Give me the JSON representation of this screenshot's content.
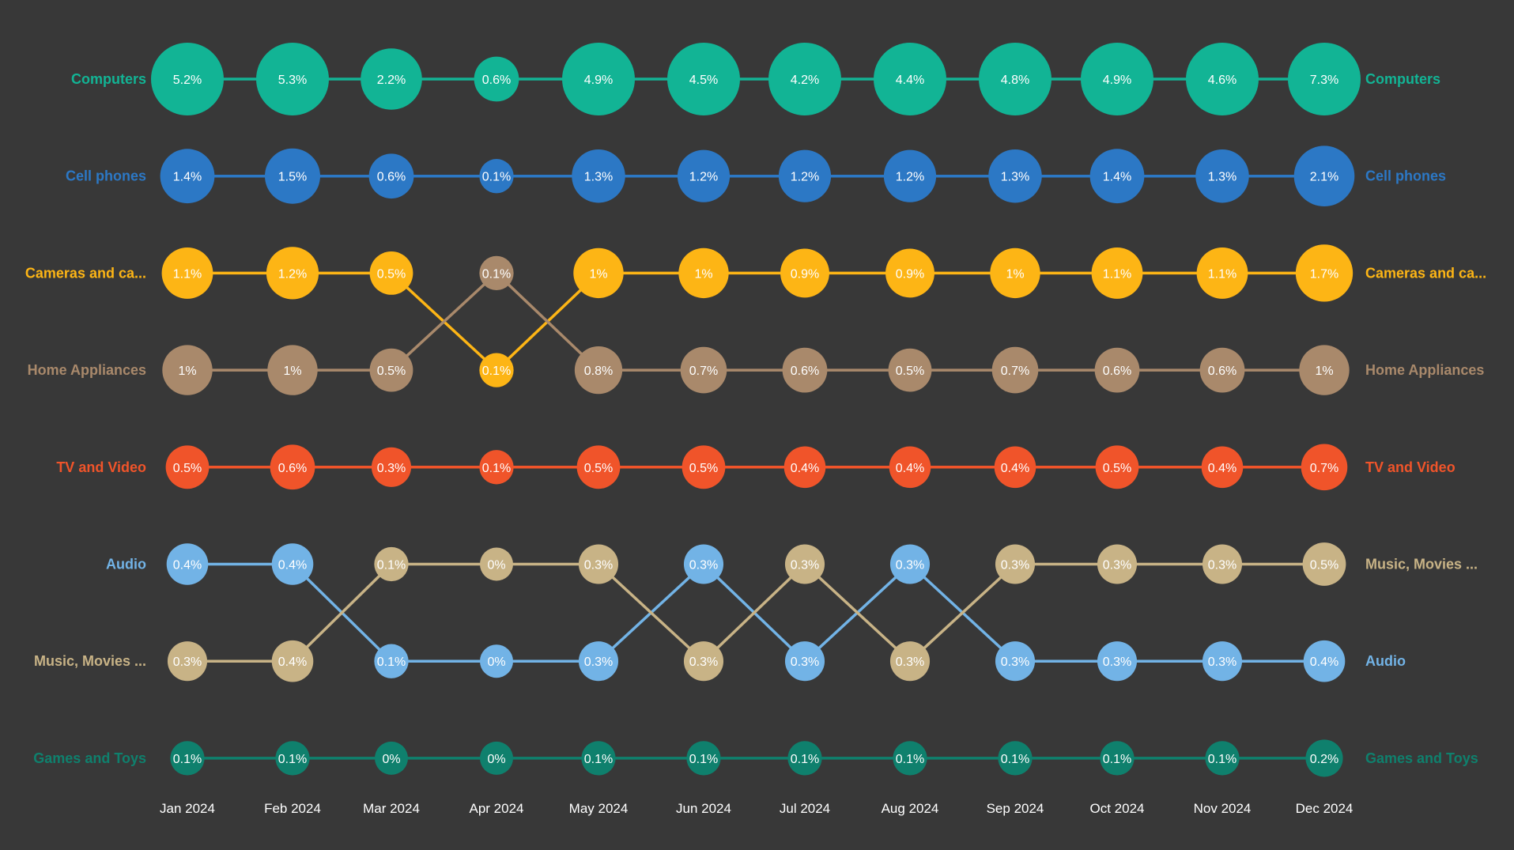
{
  "chart_data": {
    "type": "ribbon-rank",
    "categories": [
      "Jan 2024",
      "Feb 2024",
      "Mar 2024",
      "Apr 2024",
      "May 2024",
      "Jun 2024",
      "Jul 2024",
      "Aug 2024",
      "Sep 2024",
      "Oct 2024",
      "Nov 2024",
      "Dec 2024"
    ],
    "series": [
      {
        "name": "Computers",
        "short_label": "Computers",
        "color": "#12B495",
        "values": [
          5.2,
          5.3,
          2.2,
          0.6,
          4.9,
          4.5,
          4.2,
          4.4,
          4.8,
          4.9,
          4.6,
          7.3
        ],
        "labels": [
          "5.2%",
          "5.3%",
          "2.2%",
          "0.6%",
          "4.9%",
          "4.5%",
          "4.2%",
          "4.4%",
          "4.8%",
          "4.9%",
          "4.6%",
          "7.3%"
        ],
        "ranks": [
          1,
          1,
          1,
          1,
          1,
          1,
          1,
          1,
          1,
          1,
          1,
          1
        ]
      },
      {
        "name": "Cell phones",
        "short_label": "Cell phones",
        "color": "#2C78C5",
        "values": [
          1.4,
          1.5,
          0.6,
          0.1,
          1.3,
          1.2,
          1.2,
          1.2,
          1.3,
          1.4,
          1.3,
          2.1
        ],
        "labels": [
          "1.4%",
          "1.5%",
          "0.6%",
          "0.1%",
          "1.3%",
          "1.2%",
          "1.2%",
          "1.2%",
          "1.3%",
          "1.4%",
          "1.3%",
          "2.1%"
        ],
        "ranks": [
          2,
          2,
          2,
          2,
          2,
          2,
          2,
          2,
          2,
          2,
          2,
          2
        ]
      },
      {
        "name": "Cameras and camcorders",
        "short_label": "Cameras and ca...",
        "color": "#FDB515",
        "values": [
          1.1,
          1.2,
          0.5,
          0.1,
          1,
          1,
          0.9,
          0.9,
          1,
          1.1,
          1.1,
          1.7
        ],
        "labels": [
          "1.1%",
          "1.2%",
          "0.5%",
          "0.1%",
          "1%",
          "1%",
          "0.9%",
          "0.9%",
          "1%",
          "1.1%",
          "1.1%",
          "1.7%"
        ],
        "ranks": [
          3,
          3,
          3,
          4,
          3,
          3,
          3,
          3,
          3,
          3,
          3,
          3
        ]
      },
      {
        "name": "Home Appliances",
        "short_label": "Home Appliances",
        "color": "#A9896B",
        "values": [
          1,
          1,
          0.5,
          0.1,
          0.8,
          0.7,
          0.6,
          0.5,
          0.7,
          0.6,
          0.6,
          1
        ],
        "labels": [
          "1%",
          "1%",
          "0.5%",
          "0.1%",
          "0.8%",
          "0.7%",
          "0.6%",
          "0.5%",
          "0.7%",
          "0.6%",
          "0.6%",
          "1%"
        ],
        "ranks": [
          4,
          4,
          4,
          3,
          4,
          4,
          4,
          4,
          4,
          4,
          4,
          4
        ]
      },
      {
        "name": "TV and Video",
        "short_label": "TV and Video",
        "color": "#F0542A",
        "values": [
          0.5,
          0.6,
          0.3,
          0.1,
          0.5,
          0.5,
          0.4,
          0.4,
          0.4,
          0.5,
          0.4,
          0.7
        ],
        "labels": [
          "0.5%",
          "0.6%",
          "0.3%",
          "0.1%",
          "0.5%",
          "0.5%",
          "0.4%",
          "0.4%",
          "0.4%",
          "0.5%",
          "0.4%",
          "0.7%"
        ],
        "ranks": [
          5,
          5,
          5,
          5,
          5,
          5,
          5,
          5,
          5,
          5,
          5,
          5
        ]
      },
      {
        "name": "Audio",
        "short_label": "Audio",
        "color": "#72B3E6",
        "values": [
          0.4,
          0.4,
          0.1,
          0,
          0.3,
          0.3,
          0.3,
          0.3,
          0.3,
          0.3,
          0.3,
          0.4
        ],
        "labels": [
          "0.4%",
          "0.4%",
          "0.1%",
          "0%",
          "0.3%",
          "0.3%",
          "0.3%",
          "0.3%",
          "0.3%",
          "0.3%",
          "0.3%",
          "0.4%"
        ],
        "ranks": [
          6,
          6,
          7,
          7,
          7,
          6,
          7,
          6,
          7,
          7,
          7,
          7
        ]
      },
      {
        "name": "Music, Movies and Audio Books",
        "short_label": "Music, Movies ...",
        "color": "#C8B386",
        "values": [
          0.3,
          0.4,
          0.1,
          0,
          0.3,
          0.3,
          0.3,
          0.3,
          0.3,
          0.3,
          0.3,
          0.5
        ],
        "labels": [
          "0.3%",
          "0.4%",
          "0.1%",
          "0%",
          "0.3%",
          "0.3%",
          "0.3%",
          "0.3%",
          "0.3%",
          "0.3%",
          "0.3%",
          "0.5%"
        ],
        "ranks": [
          7,
          7,
          6,
          6,
          6,
          7,
          6,
          7,
          6,
          6,
          6,
          6
        ]
      },
      {
        "name": "Games and Toys",
        "short_label": "Games and Toys",
        "color": "#0F806D",
        "values": [
          0.1,
          0.1,
          0,
          0,
          0.1,
          0.1,
          0.1,
          0.1,
          0.1,
          0.1,
          0.1,
          0.2
        ],
        "labels": [
          "0.1%",
          "0.1%",
          "0%",
          "0%",
          "0.1%",
          "0.1%",
          "0.1%",
          "0.1%",
          "0.1%",
          "0.1%",
          "0.1%",
          "0.2%"
        ],
        "ranks": [
          8,
          8,
          8,
          8,
          8,
          8,
          8,
          8,
          8,
          8,
          8,
          8
        ]
      }
    ]
  }
}
